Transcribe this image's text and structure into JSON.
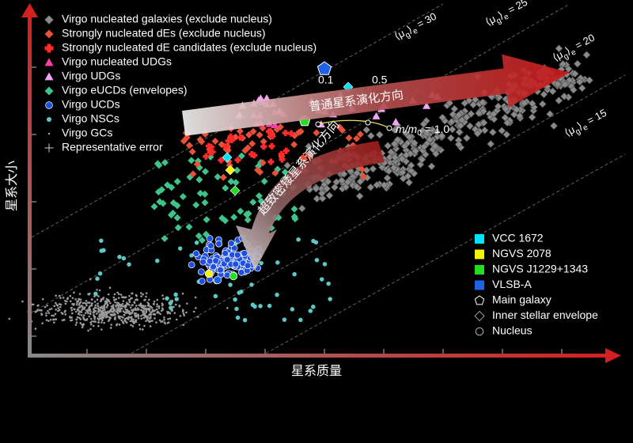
{
  "axes": {
    "x_label": "星系质量",
    "y_label": "星系大小"
  },
  "legend": [
    {
      "label": "Virgo nucleated galaxies (exclude nucleus)",
      "marker": "diamond",
      "color": "#8a8a8a"
    },
    {
      "label": "Strongly nucleated dEs (exclude nucleus)",
      "marker": "diamond",
      "color": "#e8503a"
    },
    {
      "label": "Strongly nucleated dE candidates (exclude nucleus)",
      "marker": "cross",
      "color": "#ff2a2a"
    },
    {
      "label": "Virgo nucleated UDGs",
      "marker": "triangle",
      "color": "#ff3fa8"
    },
    {
      "label": "Virgo UDGs",
      "marker": "triangle",
      "color": "#f2a6f2"
    },
    {
      "label": "Virgo eUCDs (envelopes)",
      "marker": "diamond",
      "color": "#3ec48a"
    },
    {
      "label": "Virgo UCDs",
      "marker": "circle",
      "color": "#1f4fe0"
    },
    {
      "label": "Virgo NSCs",
      "marker": "dot",
      "color": "#5cc8c8"
    },
    {
      "label": "Virgo GCs",
      "marker": "tiny",
      "color": "#9a9a9a"
    },
    {
      "label": "Representative error",
      "marker": "error",
      "color": "#cccccc"
    }
  ],
  "objects": [
    {
      "label": "VCC 1672",
      "color": "#00e5ff"
    },
    {
      "label": "NGVS 2078",
      "color": "#f5f500"
    },
    {
      "label": "NGVS J1229+1343",
      "color": "#22dd22"
    },
    {
      "label": "VLSB-A",
      "color": "#1e63e6"
    }
  ],
  "shapes": [
    {
      "label": "Main galaxy",
      "marker": "pentagon"
    },
    {
      "label": "Inner stellar envelope",
      "marker": "diamond"
    },
    {
      "label": "Nucleus",
      "marker": "circle"
    }
  ],
  "brightness_lines": [
    {
      "open": "⟨μ",
      "sub": "g",
      "close": "⟩",
      "sub2": "e",
      "value": " = 30"
    },
    {
      "open": "⟨μ",
      "sub": "g",
      "close": "⟩",
      "sub2": "e",
      "value": " = 25"
    },
    {
      "open": "⟨μ",
      "sub": "g",
      "close": "⟩",
      "sub2": "e",
      "value": " = 20"
    },
    {
      "open": "⟨μ",
      "sub": "g",
      "close": "⟩",
      "sub2": "e",
      "value": " = 15"
    }
  ],
  "mass_ratio": {
    "low": "0.1",
    "mid": "0.5",
    "prefix": "m/m",
    "sub": "0",
    "value": " = 1.0"
  },
  "arrows": {
    "normal": "普通星系演化方向",
    "ucd": "超致密矮星系演化方向"
  }
}
